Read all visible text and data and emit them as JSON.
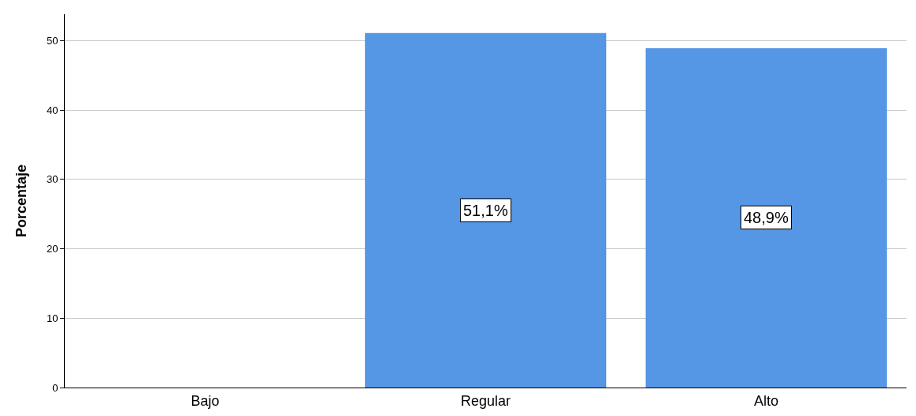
{
  "chart_data": {
    "type": "bar",
    "ylabel": "Porcentaje",
    "categories": [
      "Bajo",
      "Regular",
      "Alto"
    ],
    "values": [
      0,
      51.1,
      48.9
    ],
    "value_labels": [
      null,
      "51,1%",
      "48,9%"
    ],
    "color": "#5596e5",
    "ylim": [
      0,
      53.8
    ],
    "yticks": [
      0,
      10,
      20,
      30,
      40,
      50
    ],
    "grid": "y",
    "legend": false
  }
}
